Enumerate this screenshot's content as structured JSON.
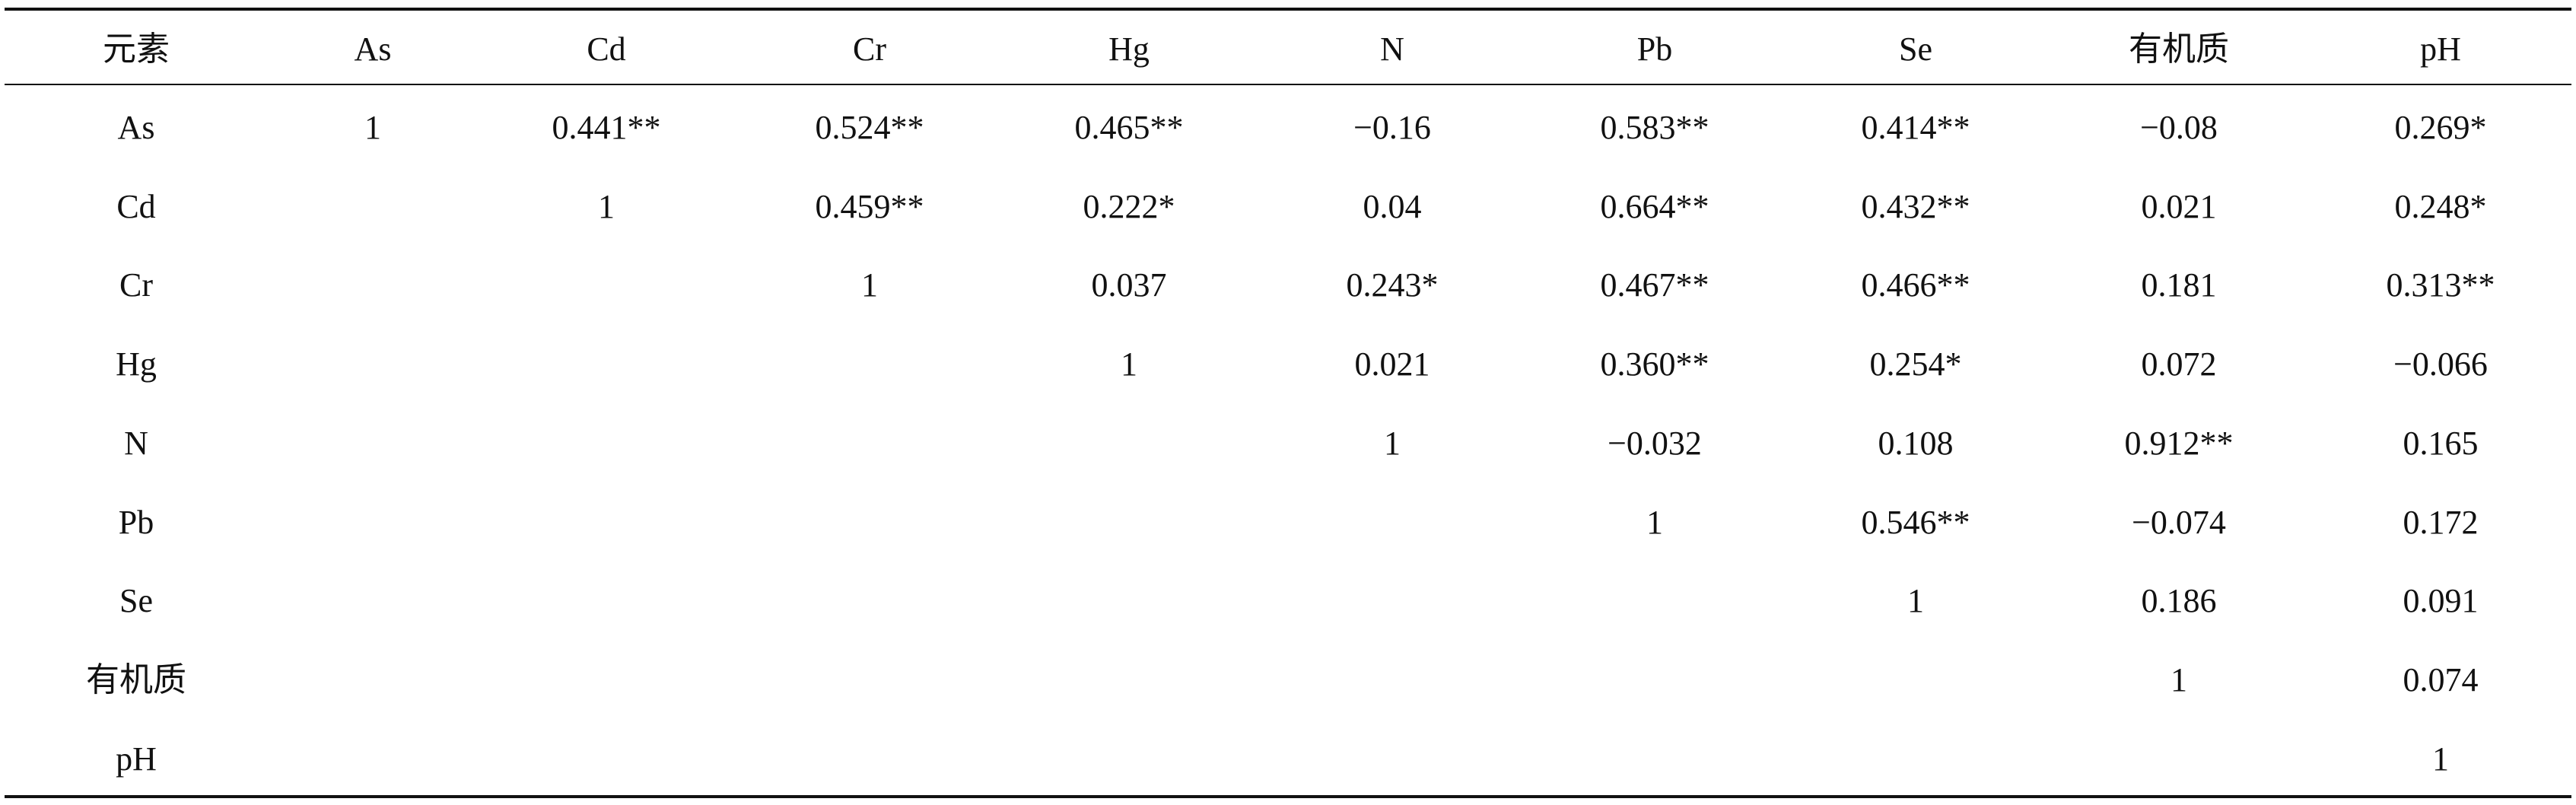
{
  "table": {
    "header": [
      "元素",
      "As",
      "Cd",
      "Cr",
      "Hg",
      "N",
      "Pb",
      "Se",
      "有机质",
      "pH"
    ],
    "rows": [
      {
        "label": "As",
        "values": [
          "1",
          "0.441**",
          "0.524**",
          "0.465**",
          "−0.16",
          "0.583**",
          "0.414**",
          "−0.08",
          "0.269*"
        ]
      },
      {
        "label": "Cd",
        "values": [
          "1",
          "0.459**",
          "0.222*",
          "0.04",
          "0.664**",
          "0.432**",
          "0.021",
          "0.248*"
        ]
      },
      {
        "label": "Cr",
        "values": [
          "1",
          "0.037",
          "0.243*",
          "0.467**",
          "0.466**",
          "0.181",
          "0.313**"
        ]
      },
      {
        "label": "Hg",
        "values": [
          "1",
          "0.021",
          "0.360**",
          "0.254*",
          "0.072",
          "−0.066"
        ]
      },
      {
        "label": "N",
        "values": [
          "1",
          "−0.032",
          "0.108",
          "0.912**",
          "0.165"
        ]
      },
      {
        "label": "Pb",
        "values": [
          "1",
          "0.546**",
          "−0.074",
          "0.172"
        ]
      },
      {
        "label": "Se",
        "values": [
          "1",
          "0.186",
          "0.091"
        ]
      },
      {
        "label": "有机质",
        "values": [
          "1",
          "0.074"
        ]
      },
      {
        "label": "pH",
        "values": [
          "1"
        ]
      }
    ]
  }
}
